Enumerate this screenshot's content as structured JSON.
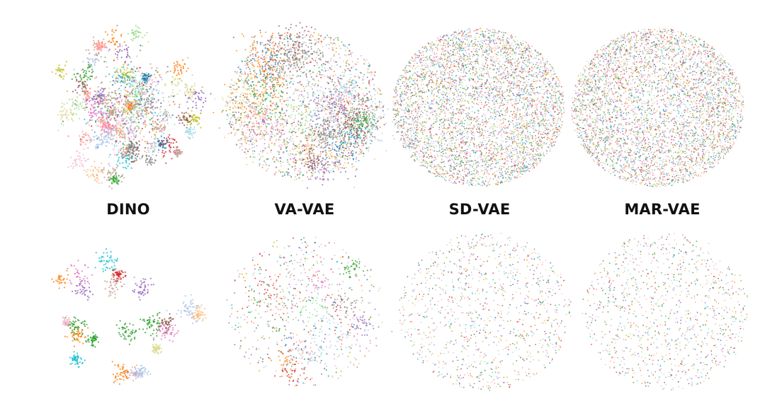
{
  "chart_data": {
    "type": "scatter",
    "description_kind": "t-SNE feature visualization grid",
    "methods": [
      "DINO",
      "VA-VAE",
      "SD-VAE",
      "MAR-VAE"
    ],
    "rows": 2,
    "grid": false,
    "axes_visible": false,
    "palette": [
      "#1f77b4",
      "#ff7f0e",
      "#2ca02c",
      "#d62728",
      "#9467bd",
      "#8c564b",
      "#e377c2",
      "#7f7f7f",
      "#bcbd22",
      "#17becf",
      "#aec7e8",
      "#ffbb78",
      "#98df8a",
      "#ff9896",
      "#c5b0d5",
      "#c49c94",
      "#f7b6d2",
      "#c7c7c7",
      "#dbdb8d",
      "#9edae5"
    ],
    "panels": [
      {
        "method": "DINO",
        "row": 1,
        "cluster_structure": "many-tight-clusters",
        "n_points": 2600,
        "seed": 11
      },
      {
        "method": "VA-VAE",
        "row": 1,
        "cluster_structure": "lobes-with-clusters",
        "n_points": 3600,
        "seed": 23
      },
      {
        "method": "SD-VAE",
        "row": 1,
        "cluster_structure": "uniform-mixed",
        "n_points": 5200,
        "seed": 37
      },
      {
        "method": "MAR-VAE",
        "row": 1,
        "cluster_structure": "uniform-mixed",
        "n_points": 5000,
        "seed": 41
      },
      {
        "method": "DINO",
        "row": 2,
        "cluster_structure": "few-tight-clusters",
        "n_points": 1000,
        "seed": 53
      },
      {
        "method": "VA-VAE",
        "row": 2,
        "cluster_structure": "loose-clusters",
        "n_points": 1000,
        "seed": 67
      },
      {
        "method": "SD-VAE",
        "row": 2,
        "cluster_structure": "uniform-sparse",
        "n_points": 1100,
        "seed": 71
      },
      {
        "method": "MAR-VAE",
        "row": 2,
        "cluster_structure": "uniform-sparse",
        "n_points": 1100,
        "seed": 83
      }
    ]
  }
}
